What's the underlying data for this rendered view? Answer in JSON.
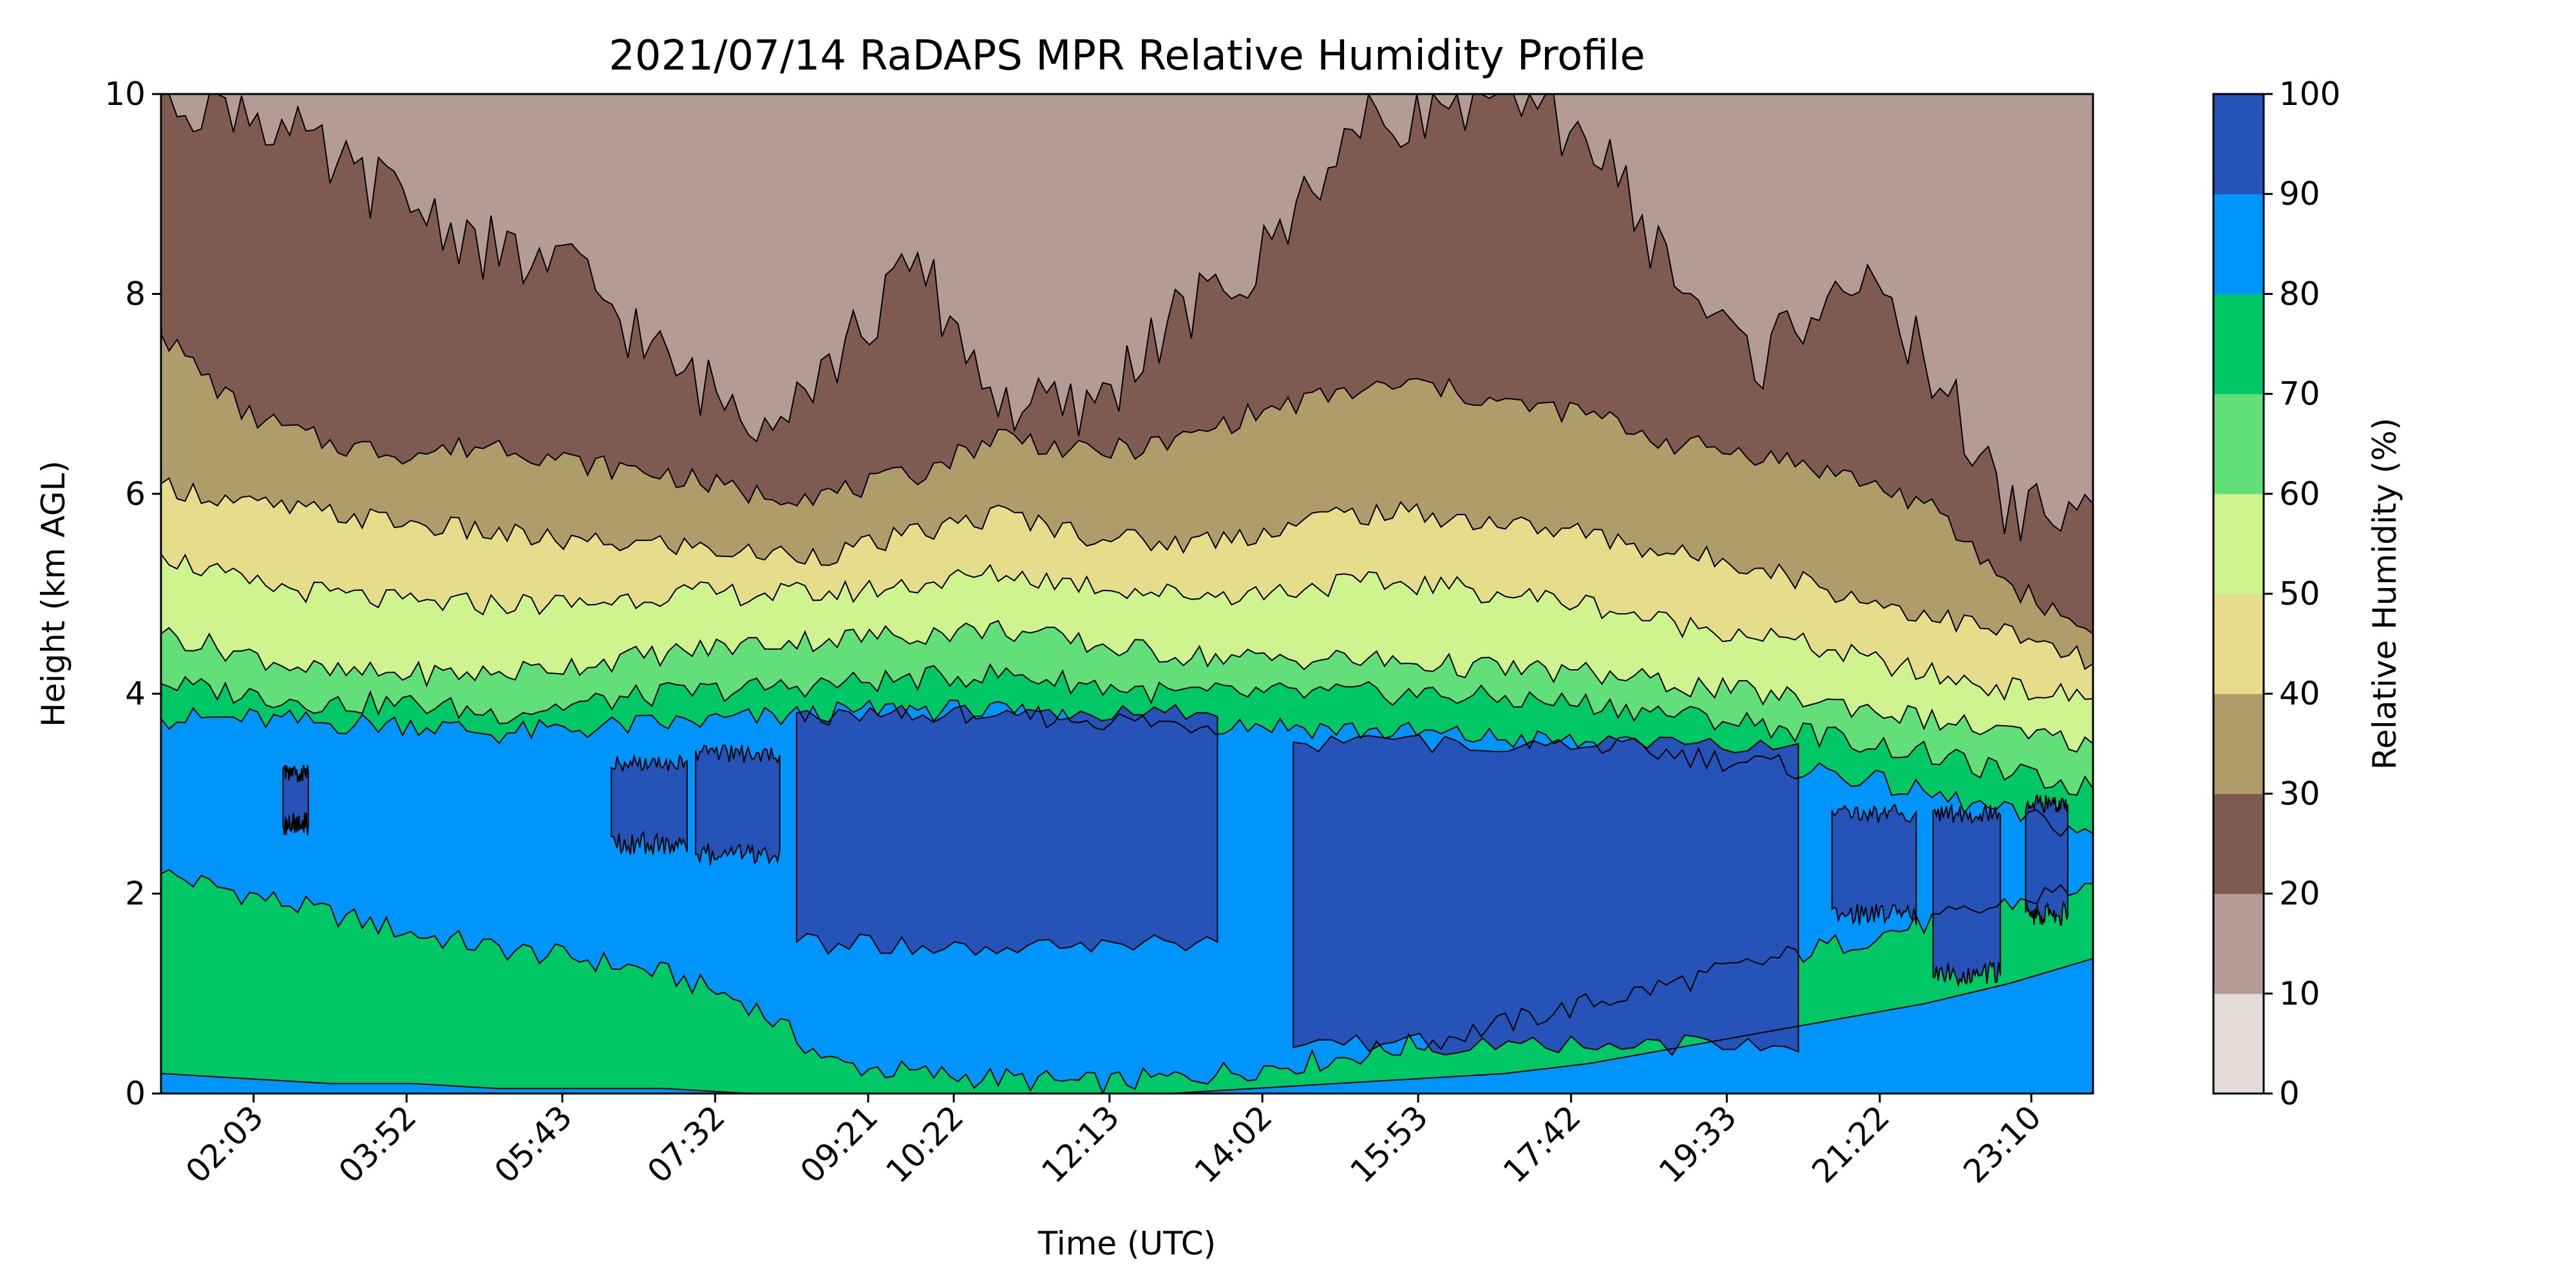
{
  "chart_data": {
    "type": "contour",
    "title": "2021/07/14 RaDAPS MPR Relative Humidity Profile",
    "xlabel": "Time (UTC)",
    "ylabel": "Height (km AGL)",
    "colorbar_label": "Relative Humidity (%)",
    "x_ticks": [
      "02:03",
      "03:52",
      "05:43",
      "07:32",
      "09:21",
      "10:22",
      "12:13",
      "14:02",
      "15:53",
      "17:42",
      "19:33",
      "21:22",
      "23:10"
    ],
    "x_tick_hours": [
      2.05,
      3.867,
      5.717,
      7.533,
      9.35,
      10.367,
      12.217,
      14.033,
      15.883,
      17.7,
      19.55,
      21.367,
      23.167
    ],
    "x_range_hours": [
      0.95,
      23.9
    ],
    "ylim": [
      0,
      10
    ],
    "y_ticks": [
      "0",
      "2",
      "4",
      "6",
      "8",
      "10"
    ],
    "y_tick_values": [
      0,
      2,
      4,
      6,
      8,
      10
    ],
    "levels": [
      0,
      10,
      20,
      30,
      40,
      50,
      60,
      70,
      80,
      90,
      100
    ],
    "level_labels": [
      "0",
      "10",
      "20",
      "30",
      "40",
      "50",
      "60",
      "70",
      "80",
      "90",
      "100"
    ],
    "level_colors": [
      "#e3dbd7",
      "#b39c96",
      "#7e5a51",
      "#b09b6a",
      "#e5dd8c",
      "#cff38f",
      "#63df7a",
      "#00c866",
      "#0095fb",
      "#2553b8"
    ],
    "contour_boundaries": [
      {
        "rh": 70,
        "bottom": true,
        "height_km": [
          0.2,
          0.15,
          0.1,
          0.1,
          0.05,
          0.05,
          0.05,
          0.0,
          0.0,
          0.0,
          0.0,
          0.0,
          0.0,
          0.05,
          0.1,
          0.15,
          0.2,
          0.3,
          0.45,
          0.6,
          0.75,
          0.9,
          1.1,
          1.35
        ]
      },
      {
        "rh": 80,
        "height_km": [
          2.2,
          2.0,
          1.8,
          1.6,
          1.45,
          1.35,
          1.2,
          0.9,
          0.3,
          0.2,
          0.15,
          0.1,
          0.15,
          0.25,
          0.35,
          0.5,
          0.7,
          0.9,
          1.1,
          1.3,
          1.5,
          1.7,
          1.9,
          2.1
        ]
      },
      {
        "rh": 90,
        "height_km": [
          3.75,
          3.75,
          3.7,
          3.7,
          3.6,
          3.65,
          3.7,
          3.75,
          3.8,
          3.85,
          3.8,
          3.75,
          3.7,
          3.7,
          3.65,
          3.6,
          3.55,
          3.5,
          3.4,
          3.3,
          3.2,
          3.0,
          2.8,
          2.6
        ]
      },
      {
        "rh": 70,
        "height_km": [
          4.1,
          4.0,
          3.9,
          3.9,
          3.8,
          3.9,
          4.0,
          4.05,
          4.1,
          4.15,
          4.2,
          4.1,
          4.0,
          4.0,
          4.0,
          4.0,
          3.95,
          3.9,
          3.8,
          3.7,
          3.55,
          3.4,
          3.2,
          3.05
        ]
      },
      {
        "rh": 60,
        "height_km": [
          4.6,
          4.4,
          4.2,
          4.2,
          4.2,
          4.3,
          4.4,
          4.5,
          4.55,
          4.6,
          4.65,
          4.5,
          4.4,
          4.35,
          4.35,
          4.3,
          4.25,
          4.2,
          4.1,
          4.0,
          3.9,
          3.75,
          3.6,
          3.5
        ]
      },
      {
        "rh": 50,
        "height_km": [
          5.4,
          5.1,
          5.0,
          4.9,
          4.9,
          4.9,
          5.0,
          5.0,
          5.0,
          5.1,
          5.2,
          5.1,
          5.0,
          5.0,
          5.1,
          5.1,
          5.0,
          4.9,
          4.7,
          4.6,
          4.4,
          4.2,
          4.05,
          3.95
        ]
      },
      {
        "rh": 40,
        "height_km": [
          6.1,
          5.9,
          5.8,
          5.7,
          5.6,
          5.5,
          5.5,
          5.4,
          5.4,
          5.6,
          5.8,
          5.6,
          5.5,
          5.6,
          5.8,
          5.8,
          5.7,
          5.6,
          5.4,
          5.3,
          5.0,
          4.8,
          4.6,
          4.3
        ]
      },
      {
        "rh": 30,
        "height_km": [
          7.6,
          6.8,
          6.5,
          6.4,
          6.5,
          6.3,
          6.2,
          6.0,
          6.0,
          6.2,
          6.6,
          6.4,
          6.5,
          6.8,
          7.0,
          7.1,
          6.9,
          6.8,
          6.5,
          6.4,
          6.2,
          5.9,
          5.1,
          4.6
        ]
      },
      {
        "rh": 20,
        "height_km": [
          10.0,
          9.9,
          9.3,
          8.9,
          8.4,
          8.2,
          7.3,
          6.8,
          7.3,
          8.3,
          6.9,
          6.8,
          7.7,
          8.2,
          9.5,
          9.9,
          10.0,
          9.6,
          8.2,
          7.3,
          8.2,
          7.4,
          5.8,
          5.9
        ]
      }
    ],
    "high_humidity_regions_over_90": [
      {
        "t_start": 2.4,
        "t_end": 2.7,
        "bottom_km": 2.7,
        "top_km": 3.2
      },
      {
        "t_start": 6.3,
        "t_end": 7.2,
        "bottom_km": 2.5,
        "top_km": 3.3
      },
      {
        "t_start": 7.3,
        "t_end": 8.3,
        "bottom_km": 2.4,
        "top_km": 3.4
      },
      {
        "t_start": 8.5,
        "t_end": 13.5,
        "bottom_km": 1.5,
        "top_km": 3.8
      },
      {
        "t_start": 14.4,
        "t_end": 20.4,
        "bottom_km": 0.5,
        "top_km": 3.5
      },
      {
        "t_start": 20.8,
        "t_end": 21.8,
        "bottom_km": 1.8,
        "top_km": 2.8
      },
      {
        "t_start": 22.0,
        "t_end": 22.8,
        "bottom_km": 1.2,
        "top_km": 2.8
      },
      {
        "t_start": 23.1,
        "t_end": 23.6,
        "bottom_km": 1.8,
        "top_km": 2.9
      }
    ]
  }
}
